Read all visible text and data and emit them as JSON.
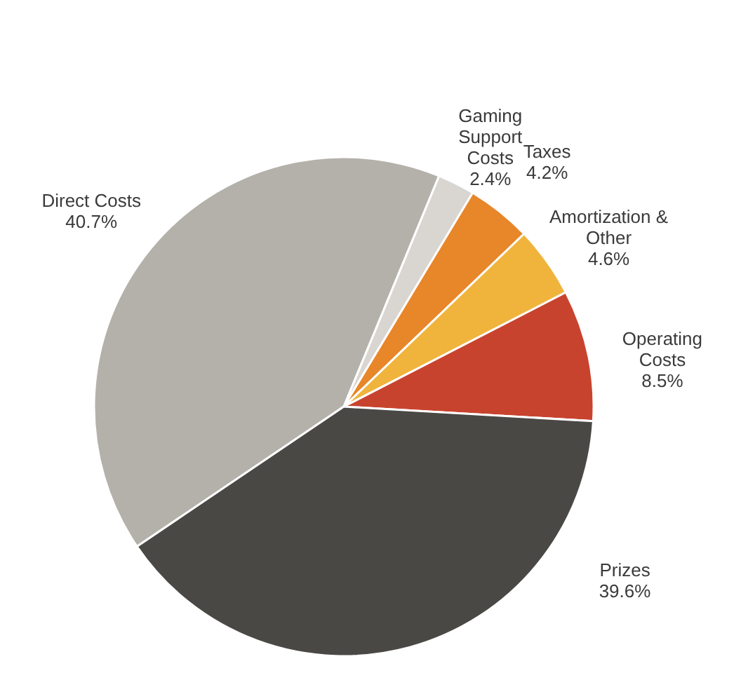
{
  "chart_data": {
    "type": "pie",
    "categories": [
      "Direct Costs",
      "Gaming Support Costs",
      "Taxes",
      "Amortization & Other",
      "Operating Costs",
      "Prizes"
    ],
    "values": [
      40.7,
      2.4,
      4.2,
      4.6,
      8.5,
      39.6
    ],
    "value_labels": [
      "40.7%",
      "2.4%",
      "4.2%",
      "4.6%",
      "8.5%",
      "39.6%"
    ],
    "colors": [
      "#b4b1ab",
      "#d9d6d1",
      "#e8862a",
      "#f0b43c",
      "#c8432e",
      "#4a4845"
    ]
  }
}
